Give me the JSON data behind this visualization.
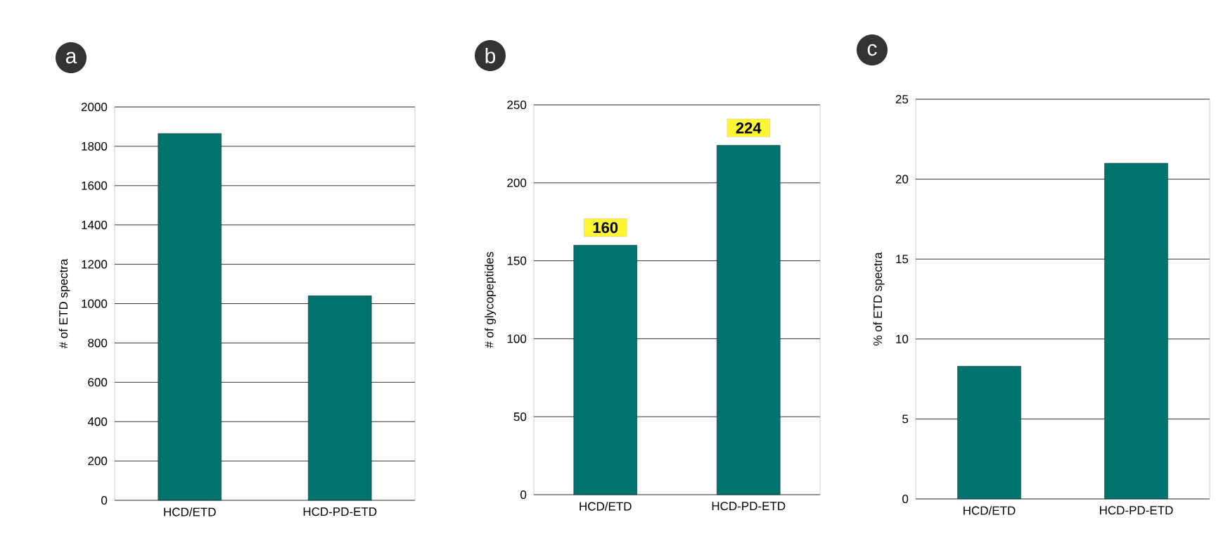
{
  "chart_data": [
    {
      "type": "bar",
      "title": "a",
      "categories": [
        "HCD/ETD",
        "HCD-PD-ETD"
      ],
      "values": [
        1865,
        1040
      ],
      "color": "#00736f",
      "ylabel": "# of ETD spectra",
      "ylim": [
        0,
        2000
      ],
      "yticks": [
        0,
        200,
        400,
        600,
        800,
        1000,
        1200,
        1400,
        1600,
        1800,
        2000
      ],
      "grid": "y"
    },
    {
      "type": "bar",
      "title": "b",
      "categories": [
        "HCD/ETD",
        "HCD-PD-ETD"
      ],
      "values": [
        160,
        224
      ],
      "color": "#00736f",
      "ylabel": "# of glycopeptides",
      "ylim": [
        0,
        250
      ],
      "yticks": [
        0,
        50,
        100,
        150,
        200,
        250
      ],
      "grid": "y",
      "data_labels": true
    },
    {
      "type": "bar",
      "title": "c",
      "categories": [
        "HCD/ETD",
        "HCD-PD-ETD"
      ],
      "values": [
        8.3,
        21.0
      ],
      "color": "#00736f",
      "ylabel": "% of ETD spectra",
      "ylim": [
        0,
        25
      ],
      "yticks": [
        0,
        5,
        10,
        15,
        20,
        25
      ],
      "grid": "y"
    }
  ]
}
